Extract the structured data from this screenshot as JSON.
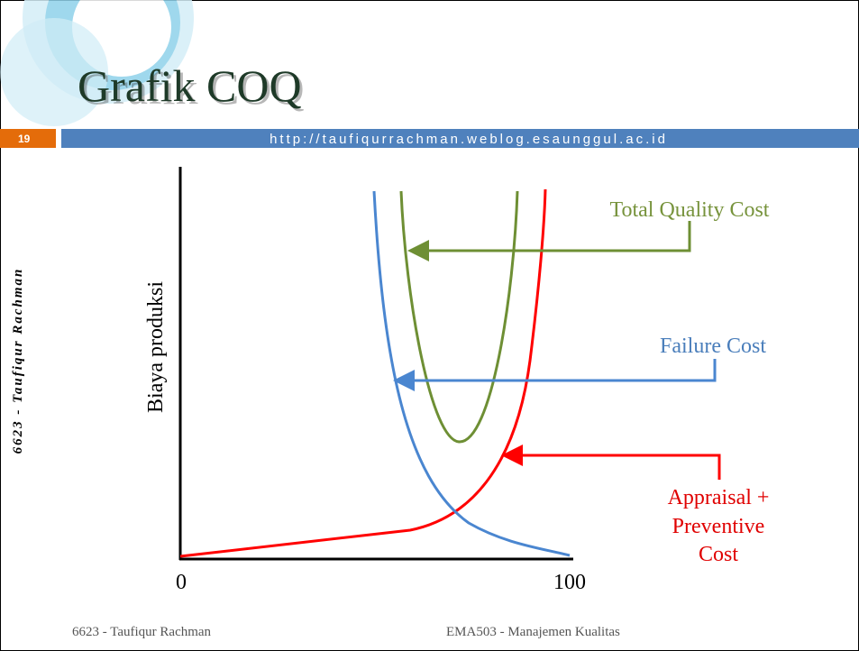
{
  "header": {
    "title": "Grafik COQ",
    "slide_number": "19",
    "url": "http://taufiqurrachman.weblog.esaunggul.ac.id"
  },
  "side_text": "6623 - Taufiqur Rachman",
  "diagram": {
    "y_axis_label": "Biaya produksi",
    "x_axis_labels": [
      "0",
      "100"
    ],
    "curve_labels": {
      "total": "Total Quality Cost",
      "failure": "Failure Cost",
      "appraisal": [
        "Appraisal +",
        "Preventive",
        "Cost"
      ]
    }
  },
  "footer": {
    "left": "6623 - Taufiqur Rachman",
    "right": "EMA503 - Manajemen Kualitas"
  }
}
